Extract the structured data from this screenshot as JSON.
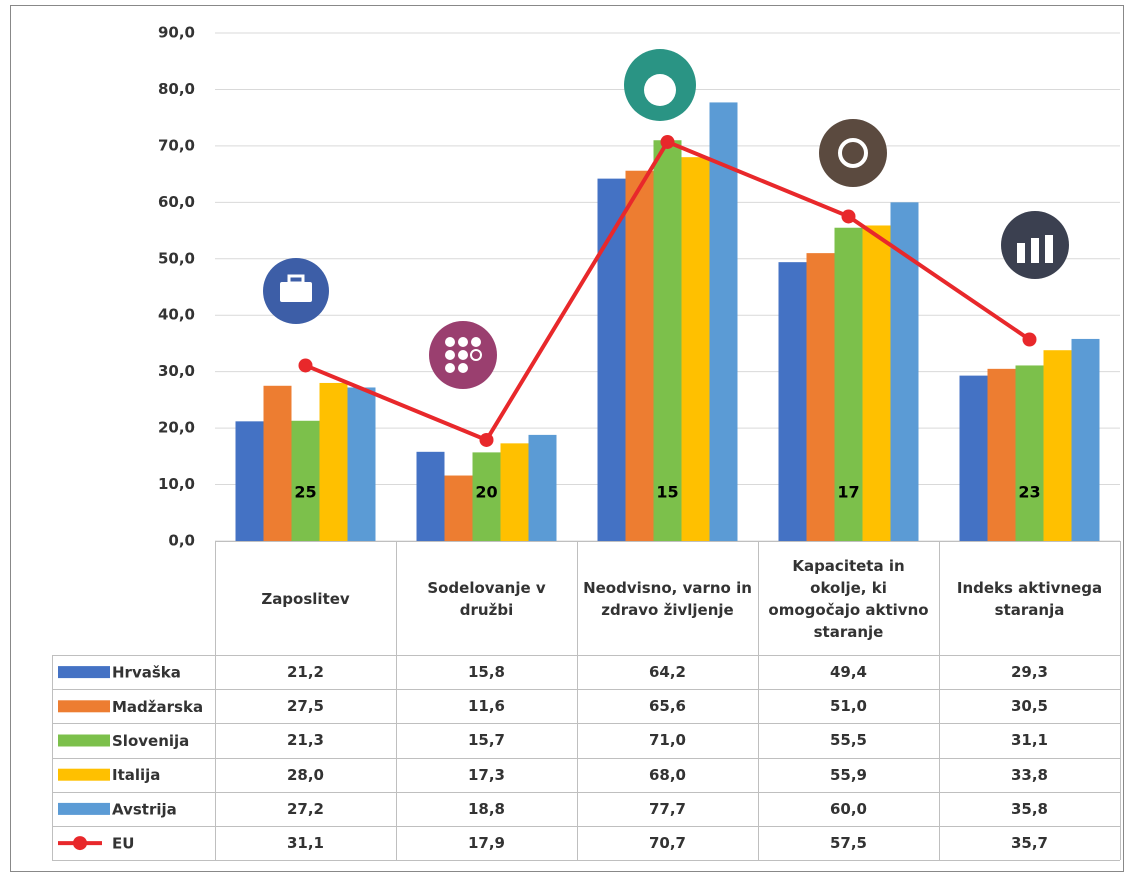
{
  "chart_data": {
    "type": "bar",
    "categories": [
      "Zaposlitev",
      "Sodelovanje v družbi",
      "Neodvisno, varno in zdravo življenje",
      "Kapaciteta in okolje, ki omogočajo aktivno staranje",
      "Indeks aktivnega staranja"
    ],
    "series": [
      {
        "name": "Hrvaška",
        "color": "#4472c4",
        "values": [
          21.2,
          15.8,
          64.2,
          49.4,
          29.3
        ],
        "value_labels": [
          "21,2",
          "15,8",
          "64,2",
          "49,4",
          "29,3"
        ]
      },
      {
        "name": "Madžarska",
        "color": "#ed7d31",
        "values": [
          27.5,
          11.6,
          65.6,
          51.0,
          30.5
        ],
        "value_labels": [
          "27,5",
          "11,6",
          "65,6",
          "51,0",
          "30,5"
        ]
      },
      {
        "name": "Slovenija",
        "color": "#7cc04b",
        "values": [
          21.3,
          15.7,
          71.0,
          55.5,
          31.1
        ],
        "value_labels": [
          "21,3",
          "15,7",
          "71,0",
          "55,5",
          "31,1"
        ]
      },
      {
        "name": "Italija",
        "color": "#ffc000",
        "values": [
          28.0,
          17.3,
          68.0,
          55.9,
          33.8
        ],
        "value_labels": [
          "28,0",
          "17,3",
          "68,0",
          "55,9",
          "33,8"
        ]
      },
      {
        "name": "Avstrija",
        "color": "#5b9bd5",
        "values": [
          27.2,
          18.8,
          77.7,
          60.0,
          35.8
        ],
        "value_labels": [
          "27,2",
          "18,8",
          "77,7",
          "60,0",
          "35,8"
        ]
      },
      {
        "name": "EU",
        "type": "line",
        "color": "#e8282b",
        "values": [
          31.1,
          17.9,
          70.7,
          57.5,
          35.7
        ],
        "value_labels": [
          "31,1",
          "17,9",
          "70,7",
          "57,5",
          "35,7"
        ]
      }
    ],
    "annotations": [
      "25",
      "20",
      "15",
      "17",
      "23"
    ],
    "ylim": [
      0,
      90
    ],
    "yticks": [
      {
        "value": 0,
        "label": "0,0"
      },
      {
        "value": 10,
        "label": "10,0"
      },
      {
        "value": 20,
        "label": "20,0"
      },
      {
        "value": 30,
        "label": "30,0"
      },
      {
        "value": 40,
        "label": "40,0"
      },
      {
        "value": 50,
        "label": "50,0"
      },
      {
        "value": 60,
        "label": "60,0"
      },
      {
        "value": 70,
        "label": "70,0"
      },
      {
        "value": 80,
        "label": "80,0"
      },
      {
        "value": 90,
        "label": "90,0"
      }
    ],
    "grid": true
  }
}
